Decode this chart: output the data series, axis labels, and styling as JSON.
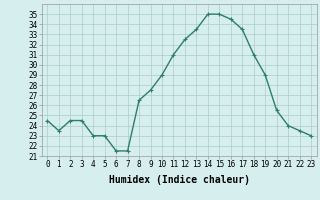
{
  "x": [
    0,
    1,
    2,
    3,
    4,
    5,
    6,
    7,
    8,
    9,
    10,
    11,
    12,
    13,
    14,
    15,
    16,
    17,
    18,
    19,
    20,
    21,
    22,
    23
  ],
  "y": [
    24.5,
    23.5,
    24.5,
    24.5,
    23.0,
    23.0,
    21.5,
    21.5,
    26.5,
    27.5,
    29.0,
    31.0,
    32.5,
    33.5,
    35.0,
    35.0,
    34.5,
    33.5,
    31.0,
    29.0,
    25.5,
    24.0,
    23.5,
    23.0
  ],
  "xlabel": "Humidex (Indice chaleur)",
  "ylim": [
    21,
    36
  ],
  "xlim": [
    -0.5,
    23.5
  ],
  "yticks": [
    21,
    22,
    23,
    24,
    25,
    26,
    27,
    28,
    29,
    30,
    31,
    32,
    33,
    34,
    35
  ],
  "xticks": [
    0,
    1,
    2,
    3,
    4,
    5,
    6,
    7,
    8,
    9,
    10,
    11,
    12,
    13,
    14,
    15,
    16,
    17,
    18,
    19,
    20,
    21,
    22,
    23
  ],
  "line_color": "#2e7d6e",
  "marker": "+",
  "bg_color": "#d6eeee",
  "grid_color": "#aacccc",
  "xlabel_fontsize": 7,
  "tick_fontsize": 5.5,
  "marker_size": 3,
  "line_width": 1.0
}
